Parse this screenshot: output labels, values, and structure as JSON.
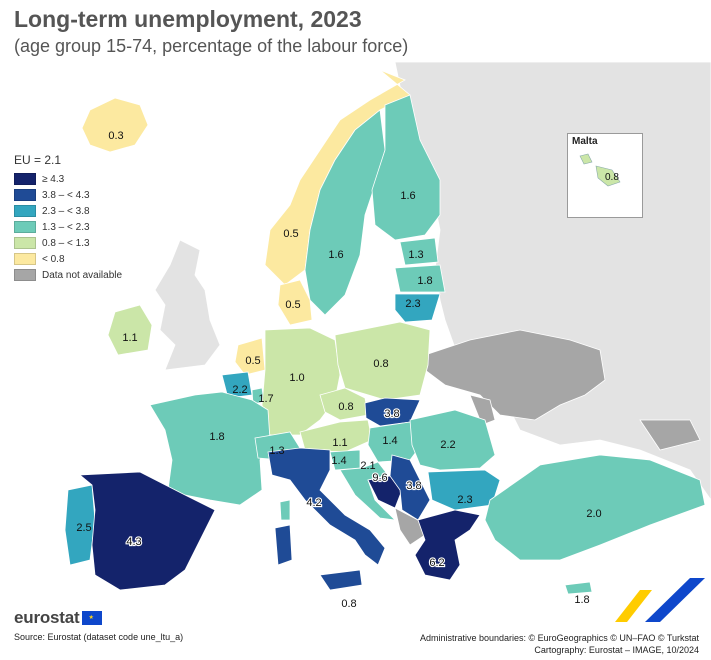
{
  "title": "Long-term unemployment, 2023",
  "subtitle": "(age group 15-74, percentage of the labour force)",
  "legend": {
    "heading": "EU = 2.1",
    "classes": [
      {
        "label": "≥ 4.3",
        "color": "#14236b"
      },
      {
        "label": "3.8 – < 4.3",
        "color": "#1f4b96"
      },
      {
        "label": "2.3 – < 3.8",
        "color": "#33a6bf"
      },
      {
        "label": "1.3 – < 2.3",
        "color": "#6dcbb8"
      },
      {
        "label": "0.8 – < 1.3",
        "color": "#cbe6a8"
      },
      {
        "label": "< 0.8",
        "color": "#fce9a0"
      },
      {
        "label": "Data not available",
        "color": "#a6a6a6"
      }
    ]
  },
  "countries": [
    {
      "name": "Iceland",
      "value": "0.3"
    },
    {
      "name": "Norway",
      "value": "0.5"
    },
    {
      "name": "Sweden",
      "value": "1.6"
    },
    {
      "name": "Finland",
      "value": "1.6"
    },
    {
      "name": "Estonia",
      "value": "1.3"
    },
    {
      "name": "Latvia",
      "value": "1.8"
    },
    {
      "name": "Lithuania",
      "value": "2.3"
    },
    {
      "name": "Denmark",
      "value": "0.5"
    },
    {
      "name": "Ireland",
      "value": "1.1"
    },
    {
      "name": "Netherlands",
      "value": "0.5"
    },
    {
      "name": "Belgium",
      "value": "2.2"
    },
    {
      "name": "Luxembourg",
      "value": "1.7"
    },
    {
      "name": "Germany",
      "value": "1.0"
    },
    {
      "name": "Poland",
      "value": "0.8"
    },
    {
      "name": "Czechia",
      "value": "0.8"
    },
    {
      "name": "Slovakia",
      "value": "3.8"
    },
    {
      "name": "France",
      "value": "1.8"
    },
    {
      "name": "Switzerland",
      "value": "1.3"
    },
    {
      "name": "Austria",
      "value": "1.1"
    },
    {
      "name": "Hungary",
      "value": "1.4"
    },
    {
      "name": "Slovenia",
      "value": "1.4"
    },
    {
      "name": "Croatia",
      "value": "2.1"
    },
    {
      "name": "Bosnia and Herzegovina",
      "value": "9.6"
    },
    {
      "name": "Serbia",
      "value": "3.8"
    },
    {
      "name": "Romania",
      "value": "2.2"
    },
    {
      "name": "Bulgaria",
      "value": "2.3"
    },
    {
      "name": "Italy",
      "value": "4.2"
    },
    {
      "name": "Spain",
      "value": "4.3"
    },
    {
      "name": "Portugal",
      "value": "2.5"
    },
    {
      "name": "Greece",
      "value": "6.2"
    },
    {
      "name": "Türkiye",
      "value": "2.0"
    },
    {
      "name": "Cyprus",
      "value": "1.8"
    },
    {
      "name": "Malta",
      "value": "0.8"
    }
  ],
  "inset": {
    "title": "Malta",
    "value": "0.8"
  },
  "logo": "eurostat",
  "source": "Source: Eurostat (dataset code une_ltu_a)",
  "admin_line1": "Administrative boundaries: © EuroGeographics © UN–FAO © Turkstat",
  "admin_line2": "Cartography: Eurostat – IMAGE, 10/2024"
}
